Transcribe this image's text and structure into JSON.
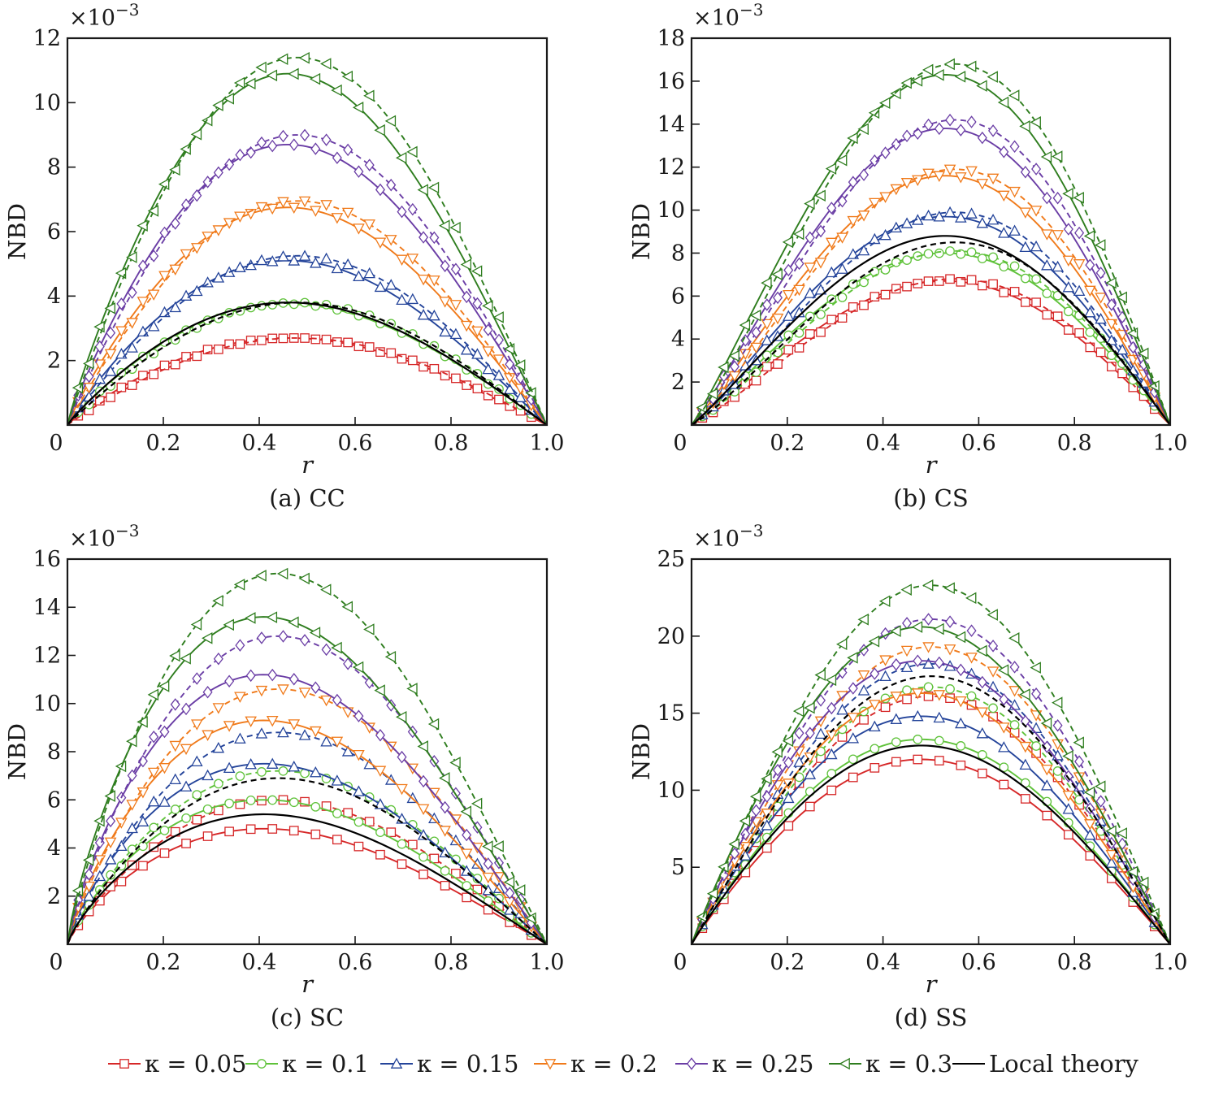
{
  "chart_data": [
    {
      "type": "line",
      "caption": "(a) CC",
      "xlabel": "r",
      "ylabel": "NBD",
      "xlim": [
        0,
        1.0
      ],
      "ylim": [
        0,
        12
      ],
      "y_multiplier": "×10−3",
      "xticks": [
        "0",
        "0.2",
        "0.4",
        "0.6",
        "0.8",
        "1.0"
      ],
      "yticks": [
        "2",
        "4",
        "6",
        "8",
        "10",
        "12"
      ],
      "series": [
        {
          "kappa": "0.05",
          "peak_solid": 2.7,
          "peak_dashed": 2.7
        },
        {
          "kappa": "0.1",
          "peak_solid": 3.75,
          "peak_dashed": 3.8
        },
        {
          "kappa": "0.15",
          "peak_solid": 5.1,
          "peak_dashed": 5.25
        },
        {
          "kappa": "0.2",
          "peak_solid": 6.75,
          "peak_dashed": 6.95
        },
        {
          "kappa": "0.25",
          "peak_solid": 8.7,
          "peak_dashed": 9.0
        },
        {
          "kappa": "0.3",
          "peak_solid": 10.9,
          "peak_dashed": 11.4
        },
        {
          "kappa": "local",
          "peak_solid": 3.8,
          "peak_dashed": 3.8
        }
      ]
    },
    {
      "type": "line",
      "caption": "(b) CS",
      "xlabel": "r",
      "ylabel": "NBD",
      "xlim": [
        0,
        1.0
      ],
      "ylim": [
        0,
        18
      ],
      "y_multiplier": "×10−3",
      "xticks": [
        "0",
        "0.2",
        "0.4",
        "0.6",
        "0.8",
        "1.0"
      ],
      "yticks": [
        "2",
        "4",
        "6",
        "8",
        "10",
        "12",
        "14",
        "16",
        "18"
      ],
      "series": [
        {
          "kappa": "0.05",
          "peak_solid": 6.7,
          "peak_dashed": 6.8
        },
        {
          "kappa": "0.1",
          "peak_solid": 8.0,
          "peak_dashed": 8.1
        },
        {
          "kappa": "0.15",
          "peak_solid": 9.7,
          "peak_dashed": 9.9
        },
        {
          "kappa": "0.2",
          "peak_solid": 11.6,
          "peak_dashed": 11.9
        },
        {
          "kappa": "0.25",
          "peak_solid": 13.8,
          "peak_dashed": 14.2
        },
        {
          "kappa": "0.3",
          "peak_solid": 16.3,
          "peak_dashed": 16.8
        },
        {
          "kappa": "local",
          "peak_solid": 8.8,
          "peak_dashed": 8.5
        }
      ]
    },
    {
      "type": "line",
      "caption": "(c) SC",
      "xlabel": "r",
      "ylabel": "NBD",
      "xlim": [
        0,
        1.0
      ],
      "ylim": [
        0,
        16
      ],
      "y_multiplier": "×10−3",
      "xticks": [
        "0",
        "0.2",
        "0.4",
        "0.6",
        "0.8",
        "1.0"
      ],
      "yticks": [
        "2",
        "4",
        "6",
        "8",
        "10",
        "12",
        "14",
        "16"
      ],
      "series": [
        {
          "kappa": "0.05",
          "peak_solid": 4.8,
          "peak_dashed": 6.0
        },
        {
          "kappa": "0.1",
          "peak_solid": 6.0,
          "peak_dashed": 7.2
        },
        {
          "kappa": "0.15",
          "peak_solid": 7.5,
          "peak_dashed": 8.8
        },
        {
          "kappa": "0.2",
          "peak_solid": 9.3,
          "peak_dashed": 10.6
        },
        {
          "kappa": "0.25",
          "peak_solid": 11.2,
          "peak_dashed": 12.8
        },
        {
          "kappa": "0.3",
          "peak_solid": 13.6,
          "peak_dashed": 15.4
        },
        {
          "kappa": "local",
          "peak_solid": 5.4,
          "peak_dashed": 6.9
        }
      ]
    },
    {
      "type": "line",
      "caption": "(d) SS",
      "xlabel": "r",
      "ylabel": "NBD",
      "xlim": [
        0,
        1.0
      ],
      "ylim": [
        0,
        25
      ],
      "y_multiplier": "×10−3",
      "xticks": [
        "0",
        "0.2",
        "0.4",
        "0.6",
        "0.8",
        "1.0"
      ],
      "yticks": [
        "5",
        "10",
        "15",
        "20",
        "25"
      ],
      "series": [
        {
          "kappa": "0.05",
          "peak_solid": 12.0,
          "peak_dashed": 16.1
        },
        {
          "kappa": "0.1",
          "peak_solid": 13.3,
          "peak_dashed": 16.7
        },
        {
          "kappa": "0.15",
          "peak_solid": 14.8,
          "peak_dashed": 18.2
        },
        {
          "kappa": "0.2",
          "peak_solid": 16.3,
          "peak_dashed": 19.3
        },
        {
          "kappa": "0.25",
          "peak_solid": 18.4,
          "peak_dashed": 21.1
        },
        {
          "kappa": "0.3",
          "peak_solid": 20.6,
          "peak_dashed": 23.3
        },
        {
          "kappa": "local",
          "peak_solid": 12.9,
          "peak_dashed": 17.4
        }
      ]
    }
  ],
  "series_styles": [
    {
      "kappa": "0.05",
      "color": "#d62728",
      "marker": "square"
    },
    {
      "kappa": "0.1",
      "color": "#5fc23a",
      "marker": "circle"
    },
    {
      "kappa": "0.15",
      "color": "#24449a",
      "marker": "triangle-up"
    },
    {
      "kappa": "0.2",
      "color": "#f07a1a",
      "marker": "triangle-down"
    },
    {
      "kappa": "0.25",
      "color": "#6a3da5",
      "marker": "diamond"
    },
    {
      "kappa": "0.3",
      "color": "#2e7d1e",
      "marker": "triangle-left"
    },
    {
      "kappa": "local",
      "color": "#000000",
      "marker": "none"
    }
  ],
  "legend": [
    {
      "text": "κ = 0.05"
    },
    {
      "text": "κ = 0.1"
    },
    {
      "text": "κ = 0.15"
    },
    {
      "text": "κ = 0.2"
    },
    {
      "text": "κ = 0.25"
    },
    {
      "text": "κ = 0.3"
    },
    {
      "text": "Local theory"
    }
  ]
}
